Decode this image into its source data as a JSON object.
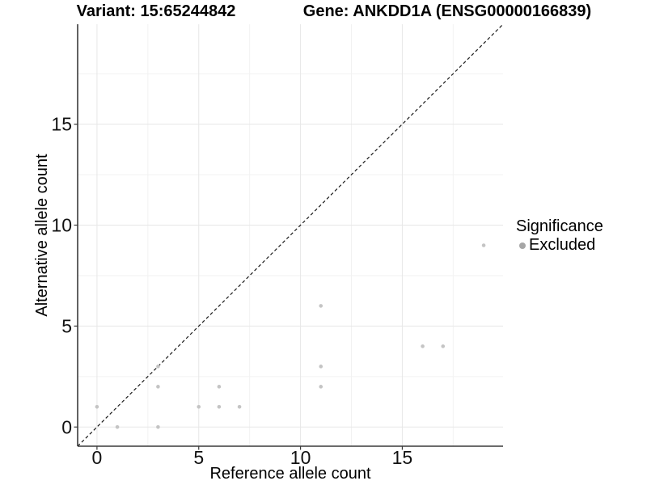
{
  "chart_data": {
    "type": "scatter",
    "titles": {
      "left": "Variant: 15:65244842",
      "right": "Gene: ANKDD1A (ENSG00000166839)"
    },
    "xlabel": "Reference allele count",
    "ylabel": "Alternative allele count",
    "xlim": [
      -0.95,
      19.95
    ],
    "ylim": [
      -0.95,
      19.95
    ],
    "xticks": [
      0,
      5,
      10,
      15
    ],
    "yticks": [
      0,
      5,
      10,
      15
    ],
    "grid": "on",
    "minor_grid": "on",
    "reference_line": {
      "type": "identity",
      "style": "dashed"
    },
    "series": [
      {
        "name": "Excluded",
        "points": [
          [
            0,
            1
          ],
          [
            1,
            0
          ],
          [
            3,
            0
          ],
          [
            3,
            2
          ],
          [
            3,
            3
          ],
          [
            5,
            1
          ],
          [
            6,
            1
          ],
          [
            6,
            2
          ],
          [
            7,
            1
          ],
          [
            11,
            2
          ],
          [
            11,
            3
          ],
          [
            11,
            6
          ],
          [
            16,
            4
          ],
          [
            17,
            4
          ],
          [
            19,
            9
          ]
        ]
      }
    ],
    "legend": {
      "title": "Significance",
      "position": "right",
      "items": [
        {
          "label": "Excluded",
          "color": "#a6a6a6"
        }
      ]
    },
    "colors": {
      "point": "#c4c4c4",
      "legend_dot": "#a6a6a6",
      "gridline_major": "#e7e7e7",
      "gridline_minor": "#f2f2f2",
      "axis_line": "#3a3a3a",
      "reference_line": "#1a1a1a",
      "tick_text": "#111111"
    }
  }
}
